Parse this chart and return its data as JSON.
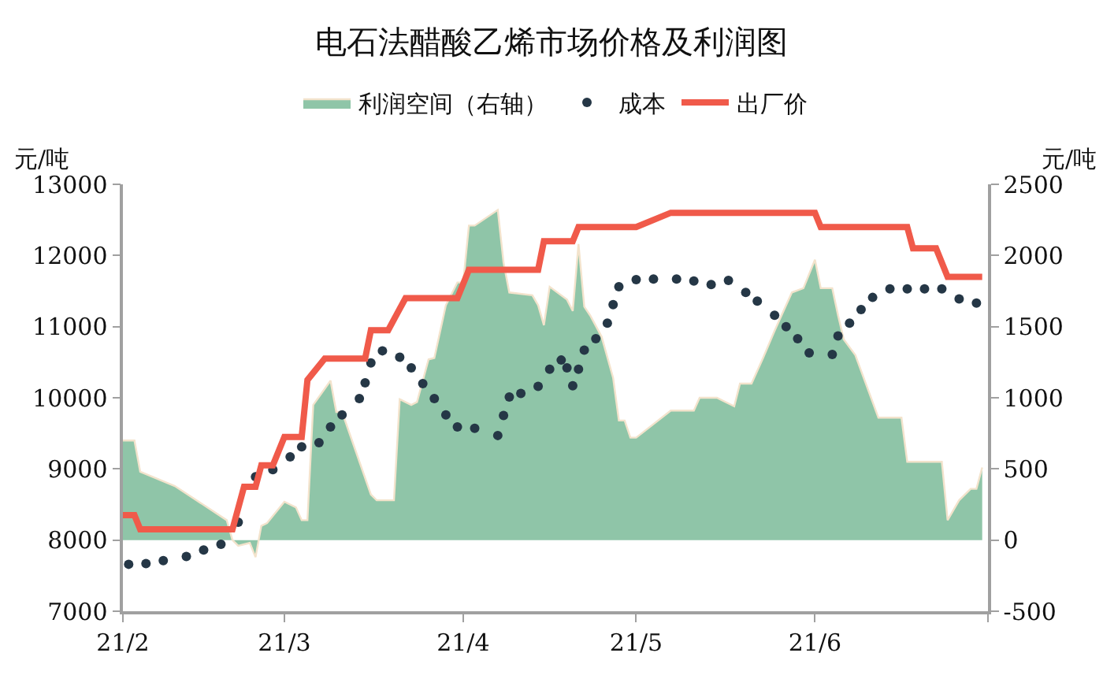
{
  "chart_data": {
    "type": "line",
    "title": "电石法醋酸乙烯市场价格及利润图",
    "ylabel": "元/吨",
    "y2label": "元/吨",
    "xlim": [
      "--02-01",
      "--07-01"
    ],
    "xticks": [
      {
        "value": "--02-01",
        "label": "21/2"
      },
      {
        "value": "--03-01",
        "label": "21/3"
      },
      {
        "value": "--04-01",
        "label": "21/4"
      },
      {
        "value": "--05-01",
        "label": "21/5"
      },
      {
        "value": "--06-01",
        "label": "21/6"
      },
      {
        "value": "--07-01",
        "label": null
      }
    ],
    "ylim": [
      7000,
      13000
    ],
    "yticks": [
      7000,
      8000,
      9000,
      10000,
      11000,
      12000,
      13000
    ],
    "y2lim": [
      -500,
      2500
    ],
    "y2ticks": [
      -500,
      0,
      500,
      1000,
      1500,
      2000,
      2500
    ],
    "legend": "top",
    "series": [
      {
        "name": "利润空间（右轴）",
        "type": "area",
        "axis": "y2",
        "color": "#8fc5a8",
        "x": [
          "--02-01",
          "--02-03",
          "--02-04",
          "--02-10",
          "--02-19",
          "--02-20",
          "--02-21",
          "--02-23",
          "--02-24",
          "--02-25",
          "--02-26",
          "--03-01",
          "--03-03",
          "--03-04",
          "--03-05",
          "--03-06",
          "--03-09",
          "--03-10",
          "--03-11",
          "--03-16",
          "--03-17",
          "--03-20",
          "--03-21",
          "--03-23",
          "--03-24",
          "--03-26",
          "--03-27",
          "--03-29",
          "--03-31",
          "--04-01",
          "--04-02",
          "--04-03",
          "--04-07",
          "--04-08",
          "--04-09",
          "--04-13",
          "--04-14",
          "--04-15",
          "--04-16",
          "--04-19",
          "--04-20",
          "--04-21",
          "--04-22",
          "--04-23",
          "--04-25",
          "--04-27",
          "--04-28",
          "--04-29",
          "--04-30",
          "--05-01",
          "--05-07",
          "--05-11",
          "--05-12",
          "--05-15",
          "--05-18",
          "--05-19",
          "--05-21",
          "--05-23",
          "--05-25",
          "--05-28",
          "--05-30",
          "--06-01",
          "--06-02",
          "--06-04",
          "--06-05",
          "--06-06",
          "--06-08",
          "--06-10",
          "--06-12",
          "--06-16",
          "--06-17",
          "--06-23",
          "--06-24",
          "--06-26",
          "--06-28",
          "--06-29",
          "--06-30"
        ],
        "values": [
          700,
          700,
          480,
          380,
          140,
          0,
          -40,
          -20,
          -120,
          100,
          120,
          270,
          230,
          140,
          140,
          950,
          1120,
          900,
          900,
          320,
          280,
          280,
          990,
          950,
          970,
          1270,
          1280,
          1650,
          1810,
          1810,
          2210,
          2210,
          2320,
          1950,
          1740,
          1720,
          1650,
          1510,
          1780,
          1690,
          1610,
          2080,
          1640,
          1580,
          1430,
          1140,
          840,
          840,
          720,
          720,
          910,
          910,
          1000,
          1000,
          940,
          1100,
          1100,
          1280,
          1470,
          1740,
          1770,
          1970,
          1770,
          1770,
          1580,
          1410,
          1300,
          1080,
          860,
          860,
          550,
          550,
          140,
          280,
          360,
          360,
          510
        ]
      },
      {
        "name": "成本",
        "type": "scatter",
        "marker": "circle",
        "color": "#253746",
        "x": [
          "--02-02",
          "--02-05",
          "--02-08",
          "--02-12",
          "--02-15",
          "--02-18",
          "--02-21",
          "--02-24",
          "--02-27",
          "--03-02",
          "--03-04",
          "--03-07",
          "--03-09",
          "--03-11",
          "--03-14",
          "--03-15",
          "--03-16",
          "--03-18",
          "--03-21",
          "--03-23",
          "--03-25",
          "--03-27",
          "--03-29",
          "--03-31",
          "--04-03",
          "--04-07",
          "--04-08",
          "--04-09",
          "--04-11",
          "--04-14",
          "--04-16",
          "--04-18",
          "--04-19",
          "--04-20",
          "--04-21",
          "--04-22",
          "--04-24",
          "--04-26",
          "--04-27",
          "--04-28",
          "--05-01",
          "--05-04",
          "--05-08",
          "--05-11",
          "--05-14",
          "--05-17",
          "--05-20",
          "--05-22",
          "--05-25",
          "--05-27",
          "--05-29",
          "--05-31",
          "--06-04",
          "--06-05",
          "--06-07",
          "--06-09",
          "--06-11",
          "--06-14",
          "--06-17",
          "--06-20",
          "--06-23",
          "--06-26",
          "--06-29"
        ],
        "values": [
          7660,
          7670,
          7710,
          7770,
          7860,
          7940,
          8250,
          8890,
          8990,
          9170,
          9310,
          9370,
          9590,
          9760,
          9990,
          10210,
          10490,
          10660,
          10570,
          10420,
          10200,
          9990,
          9760,
          9590,
          9570,
          9470,
          9750,
          10010,
          10060,
          10160,
          10400,
          10530,
          10420,
          10170,
          10400,
          10670,
          10830,
          11050,
          11310,
          11560,
          11660,
          11670,
          11670,
          11640,
          11590,
          11650,
          11480,
          11360,
          11160,
          11000,
          10830,
          10630,
          10610,
          10870,
          11050,
          11240,
          11410,
          11530,
          11530,
          11530,
          11530,
          11390,
          11330
        ]
      },
      {
        "name": "出厂价",
        "marker": "none",
        "line_style": "solid",
        "color": "#f05a4a",
        "x": [
          "--02-01",
          "--02-03",
          "--02-04",
          "--02-20",
          "--02-22",
          "--02-24",
          "--02-25",
          "--02-27",
          "--03-01",
          "--03-04",
          "--03-05",
          "--03-08",
          "--03-15",
          "--03-16",
          "--03-19",
          "--03-22",
          "--03-31",
          "--04-02",
          "--04-14",
          "--04-15",
          "--04-20",
          "--04-21",
          "--05-01",
          "--05-07",
          "--06-01",
          "--06-02",
          "--06-17",
          "--06-18",
          "--06-22",
          "--06-24",
          "--06-30"
        ],
        "values": [
          8350,
          8350,
          8150,
          8150,
          8750,
          8750,
          9050,
          9050,
          9450,
          9450,
          10250,
          10550,
          10550,
          10950,
          10950,
          11400,
          11400,
          11800,
          11800,
          12200,
          12200,
          12400,
          12400,
          12600,
          12600,
          12400,
          12400,
          12100,
          12100,
          11700,
          11700
        ]
      }
    ]
  }
}
